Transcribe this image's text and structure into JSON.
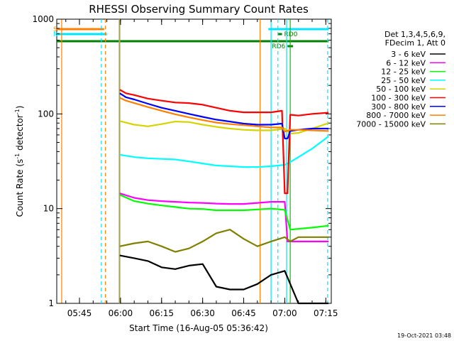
{
  "chart_data": {
    "type": "line",
    "title": "RHESSI Observing Summary Count Rates",
    "xlabel": "Start Time (16-Aug-05 05:36:42)",
    "ylabel": "Count Rate (s⁻¹ detector⁻¹)",
    "ylabel_main": "Count Rate (s",
    "ylabel_exp1": "-1",
    "ylabel_mid": " detector",
    "ylabel_exp2": "-1",
    "ylabel_end": ")",
    "yscale": "log",
    "ylim": [
      1,
      1000
    ],
    "xlim": [
      "05:36:42",
      "07:17:00"
    ],
    "x_ticks": [
      "05:45",
      "06:00",
      "06:15",
      "06:30",
      "06:45",
      "07:00",
      "07:15"
    ],
    "y_ticks": [
      "1",
      "10",
      "100",
      "1000"
    ],
    "legend_header": [
      "Det 1,3,4,5,6,9,",
      "FDecim 1, Att 0"
    ],
    "legend_placement": "right",
    "timestamp": "19-Oct-2021 03:48",
    "flags": [
      {
        "label": "S",
        "color": "#ff8000",
        "start": "05:36:42",
        "end": "05:54:00",
        "level": "high"
      },
      {
        "label": "N",
        "color": "#00e5ff",
        "start": "05:36:42",
        "end": "05:55:00",
        "level": "mid"
      },
      {
        "label": "",
        "color": "#008000",
        "start": "05:36:42",
        "end": "07:16:00",
        "level": "low"
      },
      {
        "label": "",
        "color": "#00e5ff",
        "start": "06:54:00",
        "end": "07:16:00",
        "level": "high"
      },
      {
        "label": "RD0",
        "color": "#008000",
        "start": "06:57:30",
        "end": "06:59:00",
        "level": "mid"
      },
      {
        "label": "RD6",
        "color": "#008000",
        "start": "07:01:00",
        "end": "07:03:00",
        "level": "lowlow"
      }
    ],
    "vlines": [
      {
        "time": "05:38:30",
        "color": "#ff8000",
        "style": "solid"
      },
      {
        "time": "05:53:00",
        "color": "#00e5ff",
        "style": "dashed"
      },
      {
        "time": "05:54:30",
        "color": "#ff8000",
        "style": "dashed"
      },
      {
        "time": "05:59:30",
        "color": "#00e5ff",
        "style": "solid"
      },
      {
        "time": "05:59:45",
        "color": "#ff8000",
        "style": "solid"
      },
      {
        "time": "06:51:00",
        "color": "#ff8000",
        "style": "solid"
      },
      {
        "time": "06:55:00",
        "color": "#00e5ff",
        "style": "solid"
      },
      {
        "time": "06:57:30",
        "color": "#00e5ff",
        "style": "dashed"
      },
      {
        "time": "07:00:40",
        "color": "#00e5ff",
        "style": "solid"
      },
      {
        "time": "07:02:00",
        "color": "#00c000",
        "style": "solid"
      },
      {
        "time": "07:15:40",
        "color": "#00e5ff",
        "style": "dashed"
      }
    ],
    "series": [
      {
        "name": "3 - 6 keV",
        "color": "#000000",
        "x": [
          "05:59:45",
          "06:05",
          "06:10",
          "06:15",
          "06:20",
          "06:25",
          "06:30",
          "06:35",
          "06:40",
          "06:45",
          "06:50",
          "06:55",
          "07:00",
          "07:05",
          "07:10",
          "07:16"
        ],
        "y": [
          3.2,
          3.0,
          2.8,
          2.4,
          2.3,
          2.5,
          2.6,
          1.5,
          1.4,
          1.4,
          1.6,
          2.0,
          2.2,
          1.0,
          1.0,
          1.0
        ]
      },
      {
        "name": "6 - 12 keV",
        "color": "#ff00ff",
        "x": [
          "05:59:45",
          "06:05",
          "06:10",
          "06:15",
          "06:20",
          "06:25",
          "06:30",
          "06:35",
          "06:40",
          "06:45",
          "06:50",
          "06:55",
          "07:00",
          "07:01",
          "07:16"
        ],
        "y": [
          14.5,
          13.0,
          12.3,
          12.0,
          11.8,
          11.6,
          11.5,
          11.3,
          11.2,
          11.2,
          11.5,
          11.8,
          11.8,
          4.5,
          4.5
        ]
      },
      {
        "name": "12 - 25 keV",
        "color": "#00ff00",
        "x": [
          "05:59:45",
          "06:05",
          "06:10",
          "06:15",
          "06:20",
          "06:25",
          "06:30",
          "06:35",
          "06:40",
          "06:45",
          "06:50",
          "06:55",
          "07:00",
          "07:02",
          "07:10",
          "07:16"
        ],
        "y": [
          14.0,
          12.0,
          11.3,
          10.8,
          10.4,
          10.0,
          9.9,
          9.6,
          9.6,
          9.6,
          9.8,
          10.0,
          9.7,
          6.0,
          6.3,
          6.6
        ]
      },
      {
        "name": "25 - 50 keV",
        "color": "#00ffff",
        "x": [
          "05:59:45",
          "06:05",
          "06:10",
          "06:15",
          "06:20",
          "06:25",
          "06:30",
          "06:35",
          "06:40",
          "06:45",
          "06:50",
          "06:55",
          "07:00",
          "07:02",
          "07:05",
          "07:10",
          "07:16"
        ],
        "y": [
          37,
          35,
          34,
          33.5,
          33,
          31.5,
          30,
          28.5,
          28,
          27.5,
          27.5,
          28,
          29,
          31,
          35,
          43,
          58
        ]
      },
      {
        "name": "50 - 100 keV",
        "color": "#d4d400",
        "x": [
          "05:59:45",
          "06:05",
          "06:10",
          "06:15",
          "06:20",
          "06:25",
          "06:30",
          "06:35",
          "06:40",
          "06:45",
          "06:50",
          "06:55",
          "07:00",
          "07:02",
          "07:05",
          "07:10",
          "07:16"
        ],
        "y": [
          84,
          77,
          74,
          78,
          83,
          82,
          77,
          73,
          70,
          68,
          67,
          67,
          70,
          62,
          63,
          70,
          80
        ]
      },
      {
        "name": "100 - 300 keV",
        "color": "#ff0000",
        "x": [
          "05:59:45",
          "06:02",
          "06:05",
          "06:10",
          "06:15",
          "06:20",
          "06:25",
          "06:30",
          "06:35",
          "06:40",
          "06:45",
          "06:50",
          "06:55",
          "06:59",
          "07:00",
          "07:01",
          "07:02",
          "07:05",
          "07:10",
          "07:16"
        ],
        "y": [
          180,
          165,
          158,
          145,
          138,
          132,
          130,
          125,
          116,
          108,
          104,
          104,
          104,
          108,
          14.5,
          14.5,
          98,
          96,
          100,
          103
        ]
      },
      {
        "name": "300 - 800 keV",
        "color": "#0000ff",
        "x": [
          "05:59:45",
          "06:02",
          "06:05",
          "06:10",
          "06:15",
          "06:20",
          "06:25",
          "06:30",
          "06:35",
          "06:40",
          "06:45",
          "06:50",
          "06:55",
          "06:59",
          "07:00",
          "07:01",
          "07:02",
          "07:05",
          "07:10",
          "07:16"
        ],
        "y": [
          165,
          150,
          142,
          128,
          116,
          108,
          100,
          93,
          87,
          83,
          79,
          77,
          77,
          79,
          55,
          55,
          66,
          68,
          70,
          70
        ]
      },
      {
        "name": "800 - 7000 keV",
        "color": "#ff8000",
        "x": [
          "05:59:45",
          "06:02",
          "06:05",
          "06:10",
          "06:15",
          "06:20",
          "06:25",
          "06:30",
          "06:35",
          "06:40",
          "06:45",
          "06:50",
          "06:55",
          "06:59",
          "07:00",
          "07:02",
          "07:05",
          "07:10",
          "07:16"
        ],
        "y": [
          148,
          138,
          130,
          118,
          108,
          99,
          92,
          86,
          81,
          78,
          76,
          74,
          72,
          72,
          65,
          68,
          68,
          67,
          66
        ]
      },
      {
        "name": "7000 - 15000 keV",
        "color": "#808000",
        "x": [
          "05:59:45",
          "06:05",
          "06:10",
          "06:15",
          "06:20",
          "06:25",
          "06:30",
          "06:35",
          "06:40",
          "06:45",
          "06:50",
          "06:55",
          "07:00",
          "07:02",
          "07:05",
          "07:10",
          "07:16"
        ],
        "y": [
          4.0,
          4.3,
          4.5,
          4.0,
          3.5,
          3.8,
          4.5,
          5.5,
          6.0,
          4.8,
          4.0,
          4.5,
          5.0,
          4.5,
          5.0,
          5.0,
          5.0
        ]
      }
    ]
  }
}
